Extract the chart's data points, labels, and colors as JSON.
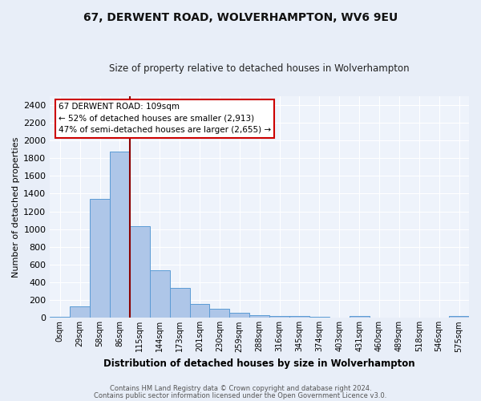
{
  "title1": "67, DERWENT ROAD, WOLVERHAMPTON, WV6 9EU",
  "title2": "Size of property relative to detached houses in Wolverhampton",
  "xlabel": "Distribution of detached houses by size in Wolverhampton",
  "ylabel": "Number of detached properties",
  "footer1": "Contains HM Land Registry data © Crown copyright and database right 2024.",
  "footer2": "Contains public sector information licensed under the Open Government Licence v3.0.",
  "bin_labels": [
    "0sqm",
    "29sqm",
    "58sqm",
    "86sqm",
    "115sqm",
    "144sqm",
    "173sqm",
    "201sqm",
    "230sqm",
    "259sqm",
    "288sqm",
    "316sqm",
    "345sqm",
    "374sqm",
    "403sqm",
    "431sqm",
    "460sqm",
    "489sqm",
    "518sqm",
    "546sqm",
    "575sqm"
  ],
  "bar_values": [
    15,
    130,
    1340,
    1870,
    1030,
    535,
    335,
    160,
    100,
    60,
    35,
    25,
    18,
    10,
    0,
    20,
    0,
    0,
    0,
    0,
    18
  ],
  "bar_color": "#aec6e8",
  "bar_edge_color": "#5b9bd5",
  "vline_x": 3.5,
  "vline_color": "#8b0000",
  "annotation_title": "67 DERWENT ROAD: 109sqm",
  "annotation_line1": "← 52% of detached houses are smaller (2,913)",
  "annotation_line2": "47% of semi-detached houses are larger (2,655) →",
  "annotation_box_color": "#ffffff",
  "annotation_box_edge": "#cc0000",
  "ylim": [
    0,
    2500
  ],
  "yticks": [
    0,
    200,
    400,
    600,
    800,
    1000,
    1200,
    1400,
    1600,
    1800,
    2000,
    2200,
    2400
  ],
  "bg_color": "#e8eef8",
  "plot_bg_color": "#eef3fb"
}
